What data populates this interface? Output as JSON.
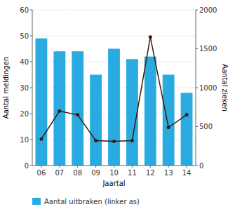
{
  "chart_data": {
    "type": "bar",
    "categories": [
      "06",
      "07",
      "08",
      "09",
      "10",
      "11",
      "12",
      "13",
      "14"
    ],
    "xlabel": "Jaartal",
    "ylabel": "Aantal meldingen",
    "y2label": "Aantal zieken",
    "ylim": [
      0,
      60
    ],
    "yticks": [
      0,
      10,
      20,
      30,
      40,
      50,
      60
    ],
    "y2lim": [
      0,
      2000
    ],
    "y2ticks": [
      0,
      500,
      1000,
      1500,
      2000
    ],
    "grid": true,
    "legend": "bottom",
    "series": [
      {
        "name": "Aantal uitbraken (linker as)",
        "type": "bar",
        "color": "#29abe2",
        "values": [
          49,
          44,
          44,
          35,
          45,
          41,
          42,
          35,
          28
        ]
      },
      {
        "type": "line",
        "axis": "y2",
        "color": "#3d1a0a",
        "marker": "circle",
        "values": [
          340,
          700,
          650,
          320,
          310,
          320,
          1650,
          490,
          650
        ]
      }
    ]
  }
}
